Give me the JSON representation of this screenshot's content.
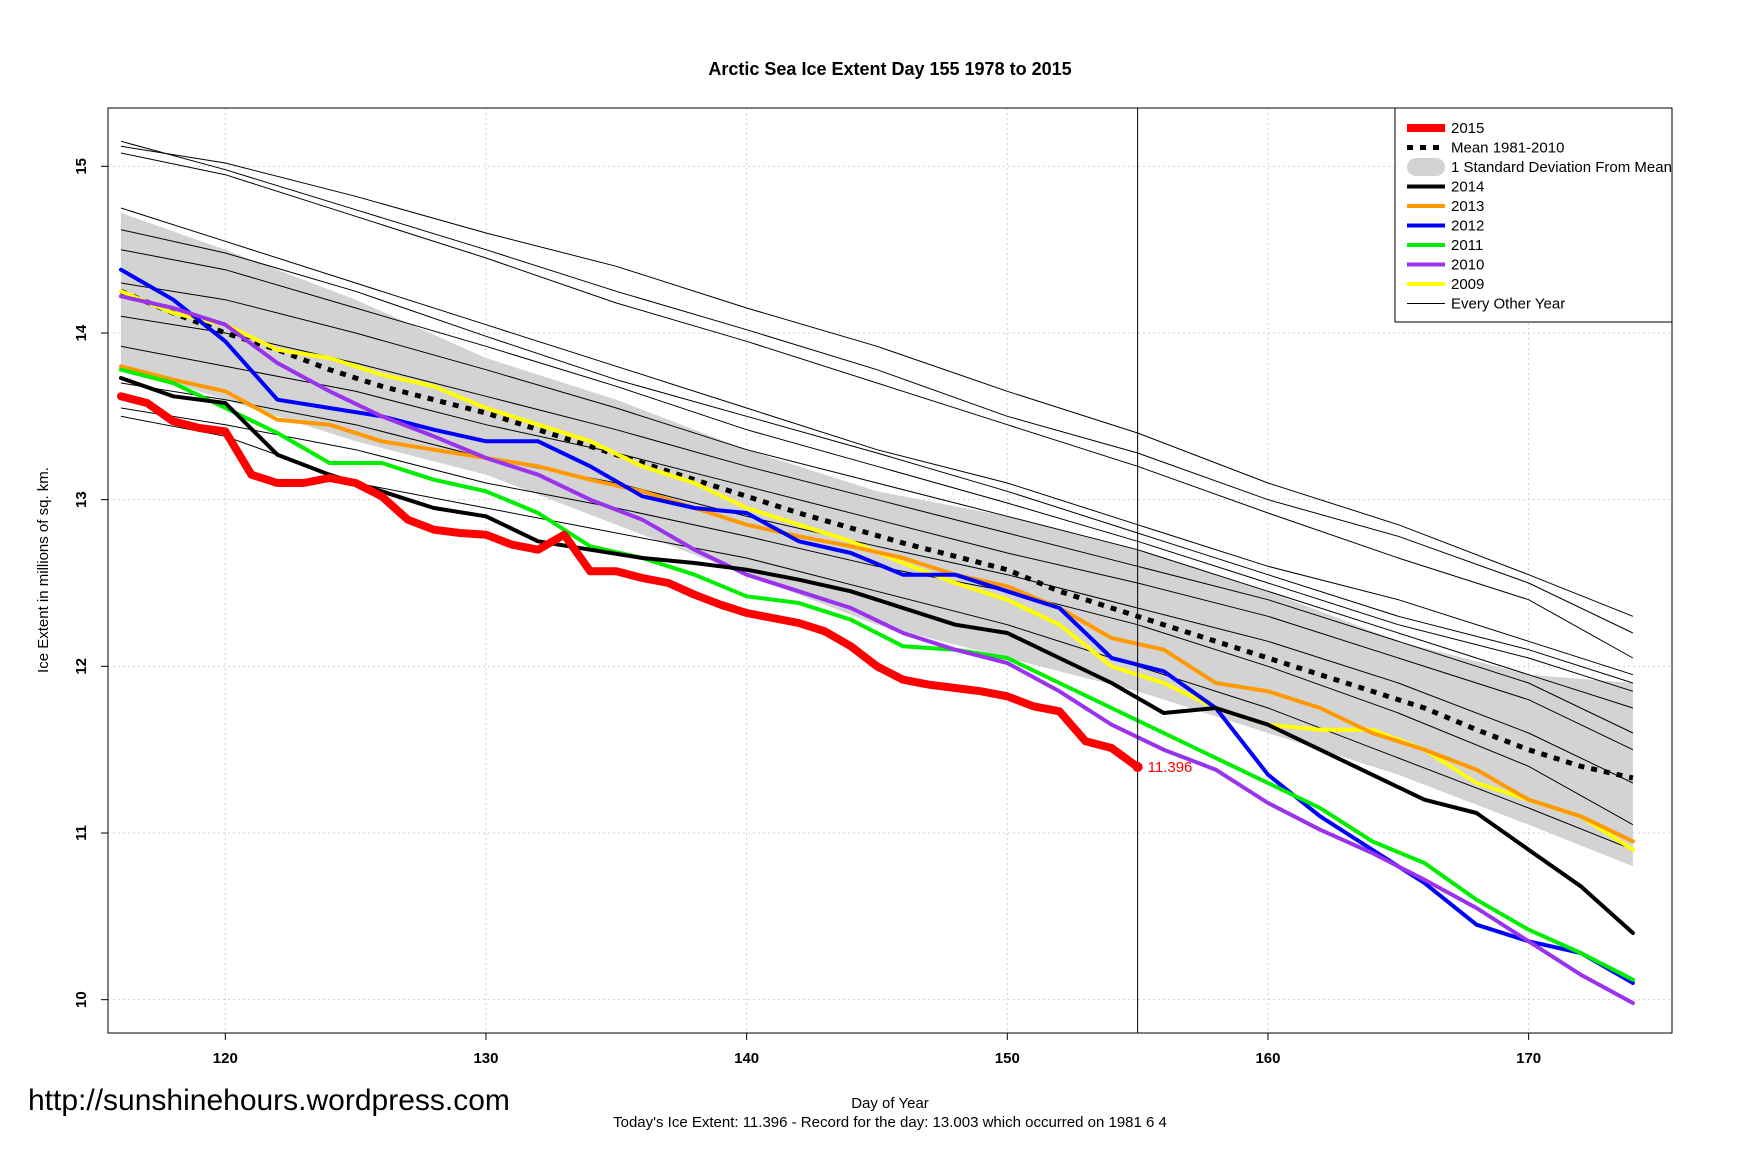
{
  "chart_data": {
    "type": "line",
    "title": "Arctic Sea Ice Extent Day 155 1978 to 2015",
    "xlabel": "Day of Year",
    "ylabel": "Ice Extent in millions of sq. km.",
    "subtitle": "Today's Ice Extent: 11.396  - Record for the day: 13.003 which occurred on 1981 6 4",
    "watermark": "http://sunshinehours.wordpress.com",
    "xlim": [
      115.5,
      175.5
    ],
    "ylim": [
      9.8,
      15.35
    ],
    "x_ticks": [
      120,
      130,
      140,
      150,
      160,
      170
    ],
    "y_ticks": [
      10,
      11,
      12,
      13,
      14,
      15
    ],
    "grid": true,
    "legend_position": "top-right",
    "current_day": 155,
    "current_value": 11.396,
    "current_value_label": "11.396",
    "legend": [
      {
        "label": "2015",
        "color": "#ff0000",
        "style": "thick"
      },
      {
        "label": "Mean 1981-2010",
        "color": "#000000",
        "style": "dotted"
      },
      {
        "label": "1 Standard Deviation From Mean",
        "color": "#d3d3d3",
        "style": "band"
      },
      {
        "label": "2014",
        "color": "#000000",
        "style": "solid"
      },
      {
        "label": "2013",
        "color": "#ff9900",
        "style": "solid"
      },
      {
        "label": "2012",
        "color": "#0000ff",
        "style": "solid"
      },
      {
        "label": "2011",
        "color": "#00ee00",
        "style": "solid"
      },
      {
        "label": "2010",
        "color": "#9933ee",
        "style": "solid"
      },
      {
        "label": "2009",
        "color": "#ffff00",
        "style": "solid"
      },
      {
        "label": "Every Other Year",
        "color": "#000000",
        "style": "thin"
      }
    ],
    "mean_band": {
      "x": [
        116,
        120,
        125,
        130,
        135,
        140,
        145,
        150,
        155,
        160,
        165,
        170,
        174
      ],
      "upper": [
        14.72,
        14.5,
        14.2,
        13.85,
        13.6,
        13.3,
        13.05,
        12.9,
        12.7,
        12.45,
        12.15,
        11.95,
        11.9
      ],
      "lower": [
        13.8,
        13.6,
        13.35,
        13.15,
        12.85,
        12.55,
        12.25,
        12.05,
        11.85,
        11.6,
        11.35,
        11.05,
        10.8
      ]
    },
    "series": [
      {
        "name": "Mean 1981-2010",
        "color": "#000000",
        "style": "dotted",
        "x": [
          116,
          118,
          120,
          122,
          124,
          126,
          128,
          130,
          132,
          134,
          136,
          138,
          140,
          142,
          144,
          146,
          148,
          150,
          152,
          154,
          156,
          158,
          160,
          162,
          164,
          166,
          168,
          170,
          172,
          174
        ],
        "values": [
          14.25,
          14.12,
          14.0,
          13.9,
          13.78,
          13.68,
          13.6,
          13.52,
          13.42,
          13.32,
          13.22,
          13.12,
          13.02,
          12.92,
          12.83,
          12.74,
          12.66,
          12.58,
          12.45,
          12.35,
          12.25,
          12.15,
          12.05,
          11.95,
          11.85,
          11.75,
          11.62,
          11.5,
          11.4,
          11.33
        ]
      },
      {
        "name": "2009",
        "color": "#ffff00",
        "style": "solid",
        "x": [
          116,
          118,
          120,
          122,
          124,
          126,
          128,
          130,
          132,
          134,
          136,
          138,
          140,
          142,
          144,
          146,
          148,
          150,
          152,
          154,
          156,
          158,
          160,
          162,
          164,
          166,
          168,
          170,
          172,
          174
        ],
        "values": [
          14.25,
          14.12,
          14.05,
          13.9,
          13.85,
          13.75,
          13.68,
          13.55,
          13.45,
          13.35,
          13.2,
          13.1,
          12.95,
          12.85,
          12.75,
          12.62,
          12.5,
          12.4,
          12.25,
          12.0,
          11.9,
          11.75,
          11.65,
          11.62,
          11.62,
          11.5,
          11.3,
          11.2,
          11.1,
          10.9
        ]
      },
      {
        "name": "2013",
        "color": "#ff9900",
        "style": "solid",
        "x": [
          116,
          118,
          120,
          122,
          124,
          126,
          128,
          130,
          132,
          134,
          136,
          138,
          140,
          142,
          144,
          146,
          148,
          150,
          152,
          154,
          156,
          158,
          160,
          162,
          164,
          166,
          168,
          170,
          172,
          174
        ],
        "values": [
          13.8,
          13.72,
          13.65,
          13.48,
          13.45,
          13.35,
          13.3,
          13.25,
          13.2,
          13.12,
          13.05,
          12.95,
          12.85,
          12.78,
          12.72,
          12.65,
          12.55,
          12.48,
          12.35,
          12.17,
          12.1,
          11.9,
          11.85,
          11.75,
          11.6,
          11.5,
          11.38,
          11.2,
          11.1,
          10.95
        ]
      },
      {
        "name": "2012",
        "color": "#0000ff",
        "style": "solid",
        "x": [
          116,
          118,
          120,
          122,
          124,
          126,
          128,
          130,
          132,
          134,
          136,
          138,
          140,
          142,
          144,
          146,
          148,
          150,
          152,
          154,
          156,
          158,
          160,
          162,
          164,
          166,
          168,
          170,
          172,
          174
        ],
        "values": [
          14.38,
          14.2,
          13.95,
          13.6,
          13.55,
          13.5,
          13.42,
          13.35,
          13.35,
          13.2,
          13.02,
          12.95,
          12.92,
          12.75,
          12.68,
          12.55,
          12.55,
          12.45,
          12.35,
          12.05,
          11.97,
          11.75,
          11.35,
          11.1,
          10.9,
          10.7,
          10.45,
          10.35,
          10.28,
          10.1
        ]
      },
      {
        "name": "2011",
        "color": "#00ee00",
        "style": "solid",
        "x": [
          116,
          118,
          120,
          122,
          124,
          126,
          128,
          130,
          132,
          134,
          136,
          138,
          140,
          142,
          144,
          146,
          148,
          150,
          152,
          154,
          156,
          158,
          160,
          162,
          164,
          166,
          168,
          170,
          172,
          174
        ],
        "values": [
          13.78,
          13.7,
          13.55,
          13.4,
          13.22,
          13.22,
          13.12,
          13.05,
          12.92,
          12.72,
          12.65,
          12.55,
          12.42,
          12.38,
          12.28,
          12.12,
          12.1,
          12.05,
          11.9,
          11.75,
          11.6,
          11.45,
          11.3,
          11.15,
          10.95,
          10.82,
          10.6,
          10.42,
          10.28,
          10.12
        ]
      },
      {
        "name": "2010",
        "color": "#9933ee",
        "style": "solid",
        "x": [
          116,
          118,
          120,
          122,
          124,
          126,
          128,
          130,
          132,
          134,
          136,
          138,
          140,
          142,
          144,
          146,
          148,
          150,
          152,
          154,
          156,
          158,
          160,
          162,
          164,
          166,
          168,
          170,
          172,
          174
        ],
        "values": [
          14.22,
          14.15,
          14.05,
          13.82,
          13.65,
          13.5,
          13.38,
          13.25,
          13.15,
          13.0,
          12.88,
          12.7,
          12.55,
          12.45,
          12.35,
          12.2,
          12.1,
          12.02,
          11.85,
          11.65,
          11.5,
          11.38,
          11.18,
          11.02,
          10.88,
          10.72,
          10.55,
          10.35,
          10.15,
          9.98
        ]
      },
      {
        "name": "2014",
        "color": "#000000",
        "style": "solid",
        "x": [
          116,
          118,
          120,
          122,
          124,
          126,
          128,
          130,
          132,
          134,
          136,
          138,
          140,
          142,
          144,
          146,
          148,
          150,
          152,
          154,
          156,
          158,
          160,
          162,
          164,
          166,
          168,
          170,
          172,
          174
        ],
        "values": [
          13.73,
          13.62,
          13.58,
          13.27,
          13.15,
          13.05,
          12.95,
          12.9,
          12.75,
          12.7,
          12.65,
          12.62,
          12.58,
          12.52,
          12.45,
          12.35,
          12.25,
          12.2,
          12.05,
          11.9,
          11.72,
          11.75,
          11.65,
          11.5,
          11.35,
          11.2,
          11.12,
          10.9,
          10.68,
          10.4
        ]
      },
      {
        "name": "2015",
        "color": "#ff0000",
        "style": "thick",
        "x": [
          116,
          117,
          118,
          119,
          120,
          121,
          122,
          123,
          124,
          125,
          126,
          127,
          128,
          129,
          130,
          131,
          132,
          133,
          134,
          135,
          136,
          137,
          138,
          139,
          140,
          141,
          142,
          143,
          144,
          145,
          146,
          147,
          148,
          149,
          150,
          151,
          152,
          153,
          154,
          155
        ],
        "values": [
          13.62,
          13.58,
          13.47,
          13.43,
          13.41,
          13.15,
          13.1,
          13.1,
          13.13,
          13.1,
          13.02,
          12.88,
          12.82,
          12.8,
          12.79,
          12.73,
          12.7,
          12.79,
          12.57,
          12.57,
          12.53,
          12.5,
          12.43,
          12.37,
          12.32,
          12.29,
          12.26,
          12.21,
          12.12,
          12.0,
          11.92,
          11.89,
          11.87,
          11.85,
          11.82,
          11.76,
          11.73,
          11.55,
          11.51,
          11.396
        ]
      }
    ],
    "other_years": [
      [
        15.15,
        14.98,
        14.74,
        14.5,
        14.25,
        14.02,
        13.78,
        13.5,
        13.28,
        13.0,
        12.78,
        12.5,
        12.2
      ],
      [
        15.12,
        15.02,
        14.82,
        14.6,
        14.4,
        14.15,
        13.92,
        13.65,
        13.4,
        13.1,
        12.85,
        12.55,
        12.3
      ],
      [
        15.08,
        14.95,
        14.7,
        14.45,
        14.18,
        13.95,
        13.7,
        13.45,
        13.2,
        12.92,
        12.65,
        12.4,
        12.05
      ],
      [
        14.75,
        14.55,
        14.3,
        14.05,
        13.8,
        13.55,
        13.3,
        13.1,
        12.85,
        12.6,
        12.4,
        12.15,
        11.95
      ],
      [
        14.62,
        14.48,
        14.25,
        13.98,
        13.72,
        13.5,
        13.28,
        13.05,
        12.8,
        12.55,
        12.3,
        12.1,
        11.9
      ],
      [
        14.5,
        14.38,
        14.15,
        13.92,
        13.68,
        13.42,
        13.2,
        12.98,
        12.75,
        12.5,
        12.25,
        12.05,
        11.85
      ],
      [
        14.3,
        14.2,
        14.0,
        13.78,
        13.55,
        13.3,
        13.1,
        12.9,
        12.7,
        12.45,
        12.2,
        11.95,
        11.75
      ],
      [
        14.1,
        14.0,
        13.82,
        13.62,
        13.42,
        13.2,
        13.0,
        12.8,
        12.6,
        12.4,
        12.15,
        11.9,
        11.6
      ],
      [
        13.92,
        13.8,
        13.65,
        13.45,
        13.28,
        13.08,
        12.88,
        12.68,
        12.5,
        12.3,
        12.05,
        11.8,
        11.5
      ],
      [
        13.7,
        13.6,
        13.45,
        13.25,
        13.1,
        12.9,
        12.72,
        12.55,
        12.35,
        12.15,
        11.9,
        11.6,
        11.3
      ],
      [
        13.55,
        13.45,
        13.3,
        13.1,
        12.95,
        12.78,
        12.6,
        12.45,
        12.25,
        12.0,
        11.72,
        11.4,
        11.05
      ],
      [
        13.5,
        13.38,
        13.1,
        12.95,
        12.8,
        12.65,
        12.45,
        12.25,
        12.0,
        11.75,
        11.45,
        11.15,
        10.9
      ]
    ],
    "other_years_x": [
      116,
      120,
      125,
      130,
      135,
      140,
      145,
      150,
      155,
      160,
      165,
      170,
      174
    ]
  }
}
